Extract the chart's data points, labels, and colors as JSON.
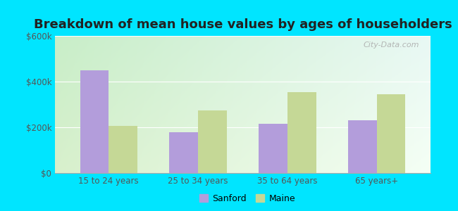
{
  "title": "Breakdown of mean house values by ages of householders",
  "categories": [
    "15 to 24 years",
    "25 to 34 years",
    "35 to 64 years",
    "65 years+"
  ],
  "sanford_values": [
    450000,
    180000,
    215000,
    230000
  ],
  "maine_values": [
    205000,
    275000,
    355000,
    345000
  ],
  "sanford_color": "#b39ddb",
  "maine_color": "#c5d896",
  "ylim": [
    0,
    600000
  ],
  "yticks": [
    0,
    200000,
    400000,
    600000
  ],
  "ytick_labels": [
    "$0",
    "$200k",
    "$400k",
    "$600k"
  ],
  "grad_top_left": "#c8eec8",
  "grad_top_right": "#e8f8f4",
  "grad_bottom_left": "#d8f0cc",
  "grad_bottom_right": "#f5fff5",
  "outer_bg": "#00e5ff",
  "legend_labels": [
    "Sanford",
    "Maine"
  ],
  "watermark": "City-Data.com",
  "title_fontsize": 13,
  "bar_width": 0.32
}
